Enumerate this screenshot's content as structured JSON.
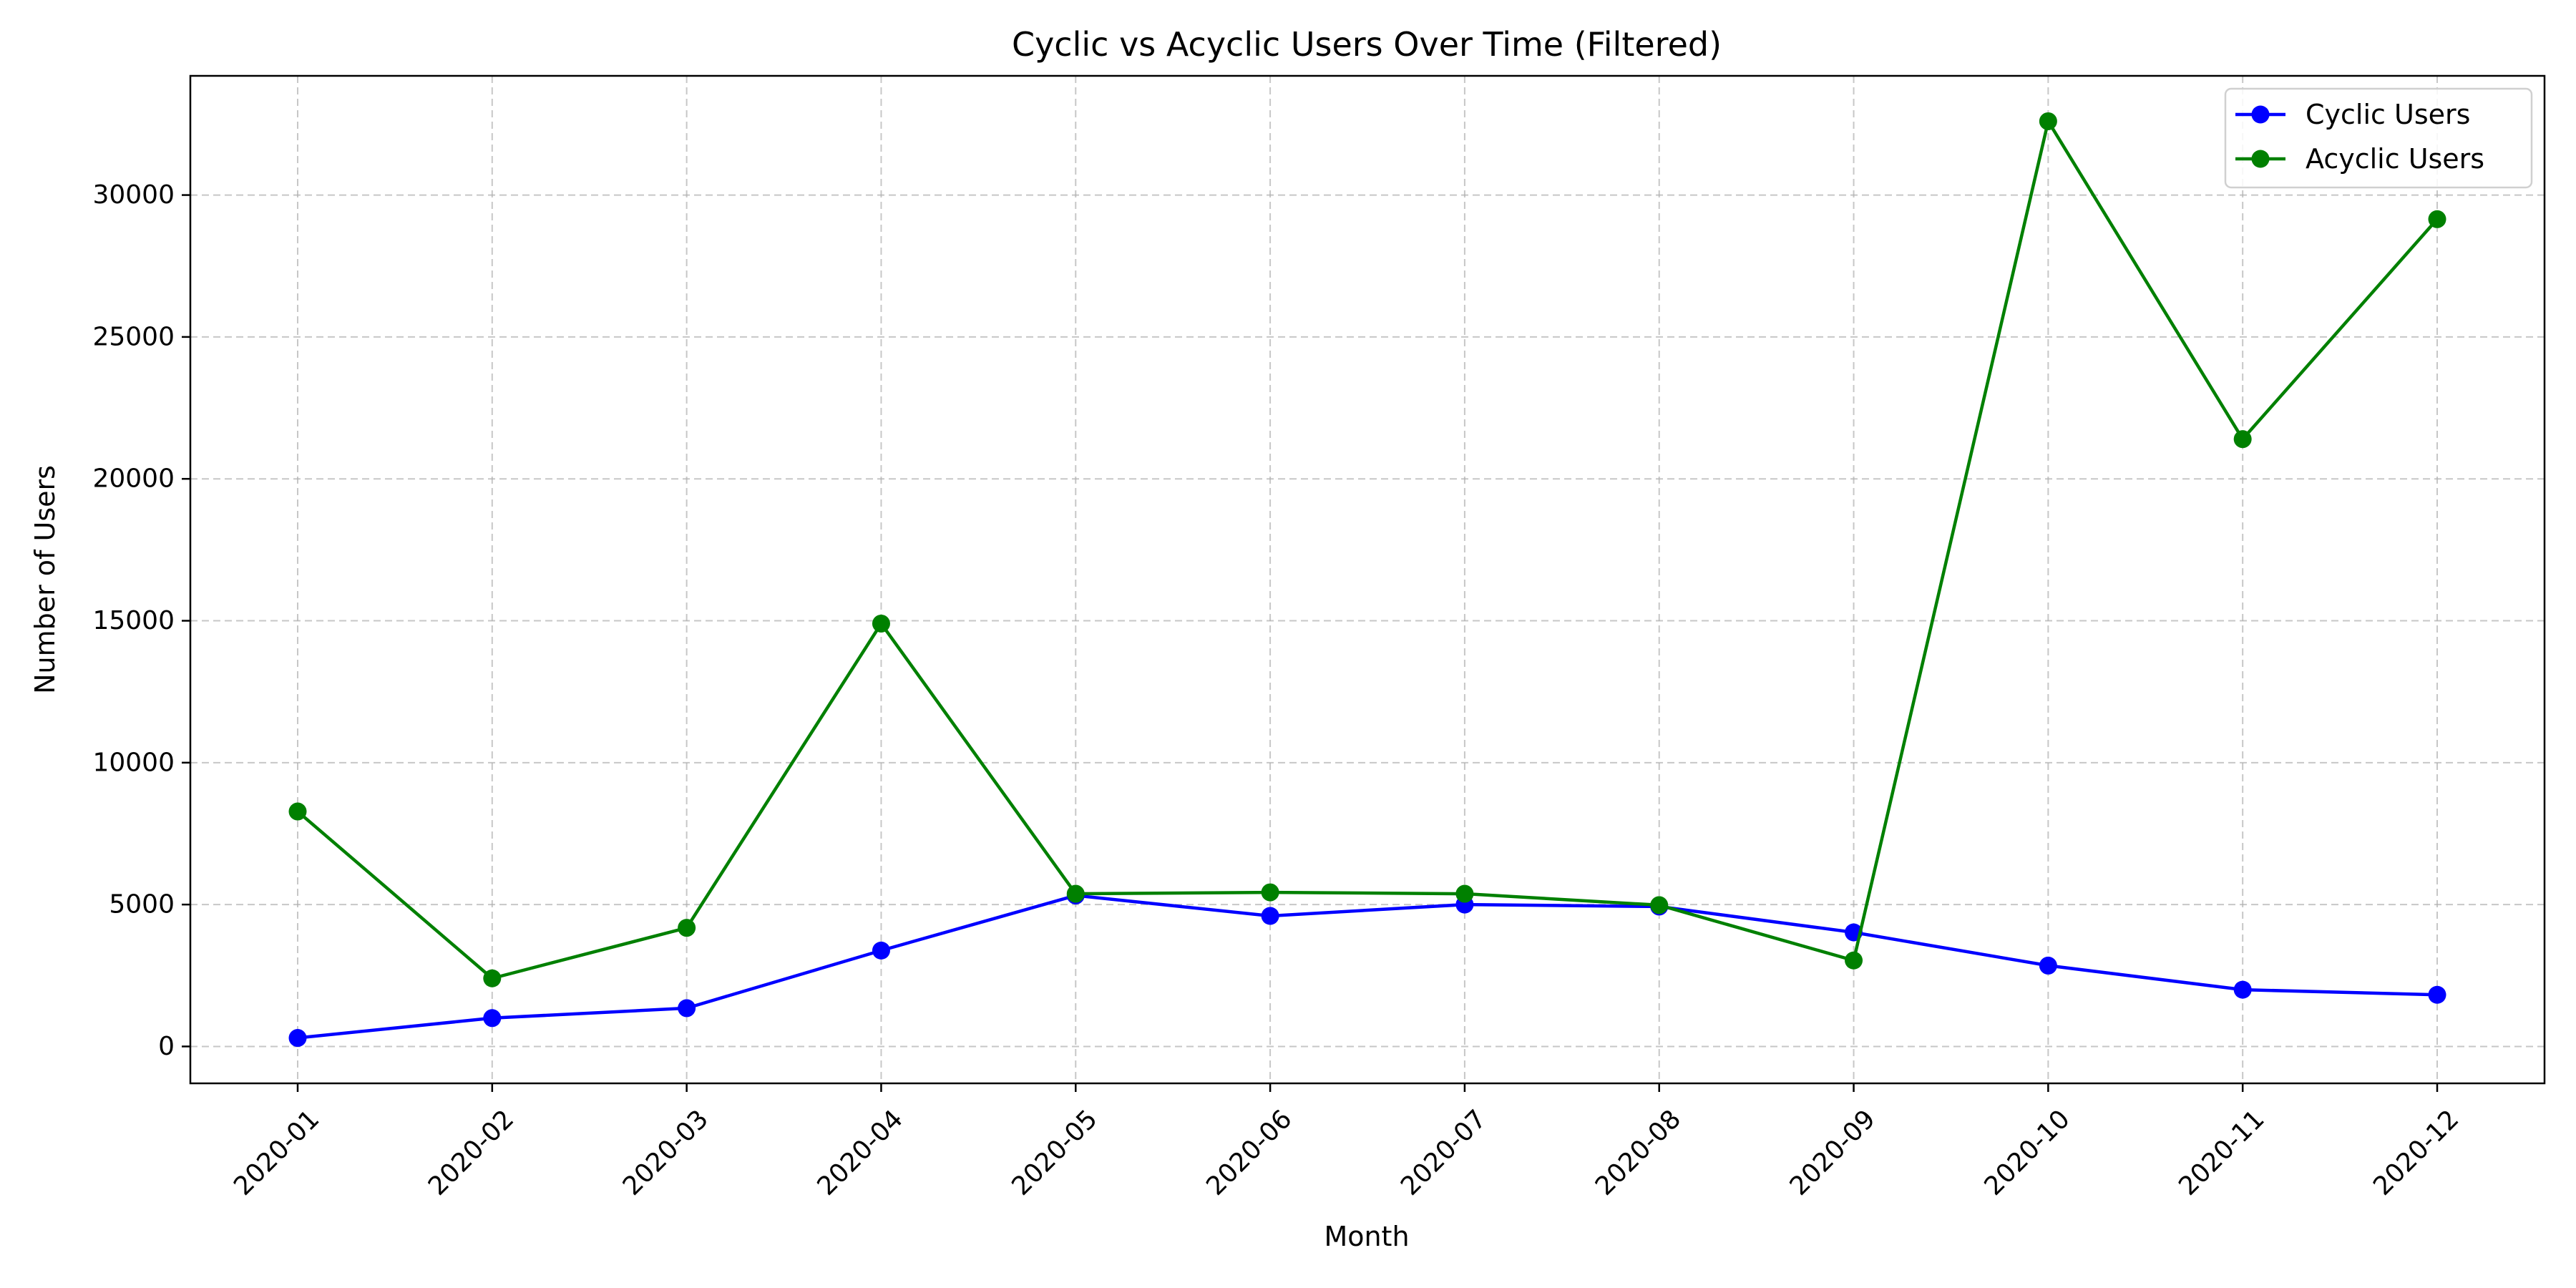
{
  "chart_data": {
    "type": "line",
    "title": "Cyclic vs Acyclic Users Over Time (Filtered)",
    "xlabel": "Month",
    "ylabel": "Number of Users",
    "categories": [
      "2020-01",
      "2020-02",
      "2020-03",
      "2020-04",
      "2020-05",
      "2020-06",
      "2020-07",
      "2020-08",
      "2020-09",
      "2020-10",
      "2020-11",
      "2020-12"
    ],
    "yticks": [
      0,
      5000,
      10000,
      15000,
      20000,
      25000,
      30000
    ],
    "ylim": [
      -1300,
      34200
    ],
    "grid": true,
    "legend_position": "top-right",
    "series": [
      {
        "name": "Cyclic Users",
        "color": "#0000ff",
        "marker": "circle",
        "values": [
          300,
          1000,
          1350,
          3380,
          5320,
          4600,
          5000,
          4930,
          4020,
          2850,
          2000,
          1820
        ]
      },
      {
        "name": "Acyclic Users",
        "color": "#008000",
        "marker": "circle",
        "values": [
          8280,
          2400,
          4180,
          14900,
          5380,
          5430,
          5380,
          4980,
          3030,
          32600,
          21400,
          29150
        ]
      }
    ]
  }
}
